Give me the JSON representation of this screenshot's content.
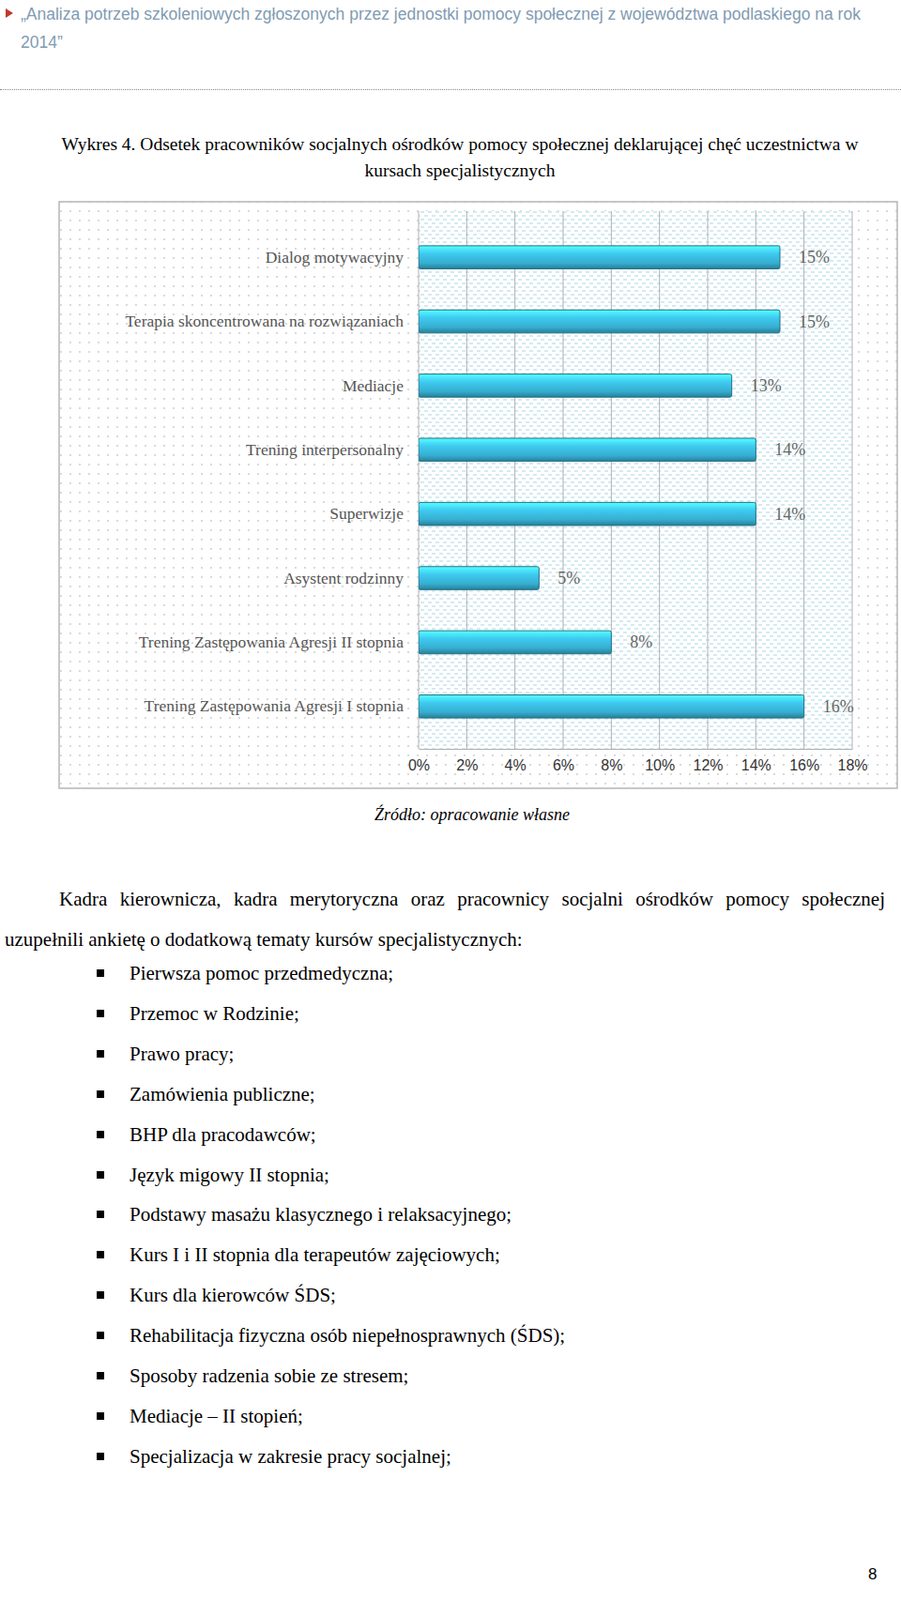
{
  "header": "„Analiza potrzeb szkoleniowych zgłoszonych przez jednostki pomocy społecznej z województwa podlaskiego na rok 2014”",
  "chart_data": {
    "type": "bar",
    "orientation": "horizontal",
    "title": "Wykres 4. Odsetek pracowników socjalnych ośrodków pomocy społecznej deklarującej chęć uczestnictwa w kursach specjalistycznych",
    "categories": [
      "Dialog motywacyjny",
      "Terapia skoncentrowana na rozwiązaniach",
      "Mediacje",
      "Trening interpersonalny",
      "Superwizje",
      "Asystent rodzinny",
      "Trening Zastępowania Agresji II stopnia",
      "Trening Zastępowania Agresji I stopnia"
    ],
    "values": [
      15,
      15,
      13,
      14,
      14,
      5,
      8,
      16
    ],
    "value_labels": [
      "15%",
      "15%",
      "13%",
      "14%",
      "14%",
      "5%",
      "8%",
      "16%"
    ],
    "data_labels": true,
    "color": "#36aed0",
    "xlim": [
      0,
      18
    ],
    "xticks": [
      {
        "value": 0,
        "label": "0%"
      },
      {
        "value": 2,
        "label": "2%"
      },
      {
        "value": 4,
        "label": "4%"
      },
      {
        "value": 6,
        "label": "6%"
      },
      {
        "value": 8,
        "label": "8%"
      },
      {
        "value": 10,
        "label": "10%"
      },
      {
        "value": 12,
        "label": "12%"
      },
      {
        "value": 14,
        "label": "14%"
      },
      {
        "value": 16,
        "label": "16%"
      },
      {
        "value": 18,
        "label": "18%"
      }
    ],
    "grid": true
  },
  "source": "Źródło: opracowanie własne",
  "body": {
    "paragraph": "Kadra kierownicza, kadra merytoryczna oraz pracownicy socjalni ośrodków pomocy społecznej uzupełnili ankietę o dodatkową tematy kursów specjalistycznych:",
    "bullets": [
      "Pierwsza pomoc przedmedyczna;",
      "Przemoc w Rodzinie;",
      "Prawo pracy;",
      "Zamówienia publiczne;",
      "BHP dla pracodawców;",
      "Język migowy II stopnia;",
      "Podstawy masażu klasycznego i relaksacyjnego;",
      "Kurs I i II stopnia dla terapeutów zajęciowych;",
      "Kurs dla kierowców ŚDS;",
      "Rehabilitacja fizyczna osób niepełnosprawnych (ŚDS);",
      "Sposoby radzenia sobie ze stresem;",
      "Mediacje – II stopień;",
      "Specjalizacja w zakresie pracy socjalnej;"
    ]
  },
  "page_number": "8"
}
